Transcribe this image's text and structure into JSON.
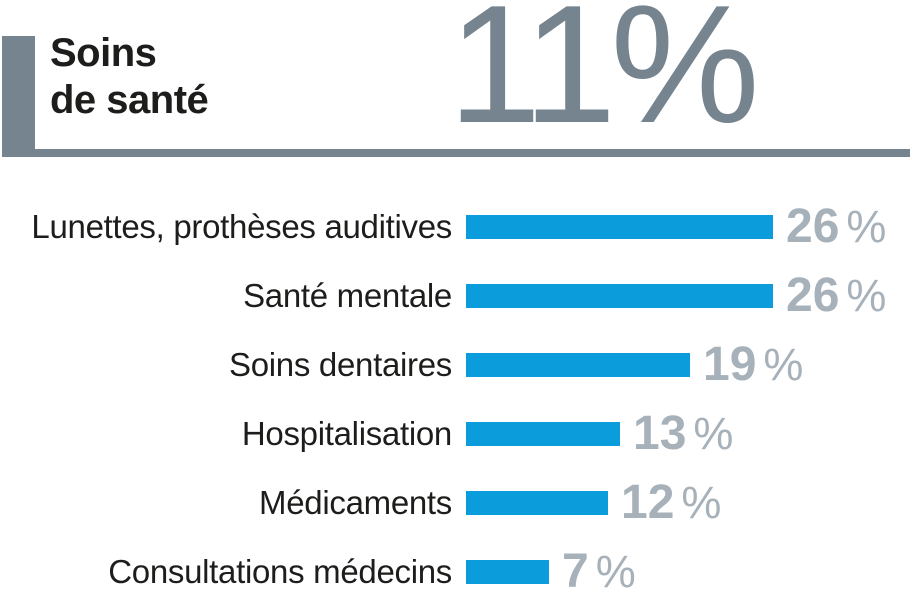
{
  "header": {
    "title_line1": "Soins",
    "title_line2": "de santé",
    "total_value": "11",
    "total_unit": "%"
  },
  "chart_data": {
    "type": "bar",
    "orientation": "horizontal",
    "title": "Soins de santé",
    "section_share_percent": 11,
    "categories": [
      "Lunettes, prothèses auditives",
      "Santé mentale",
      "Soins dentaires",
      "Hospitalisation",
      "Médicaments",
      "Consultations médecins"
    ],
    "values": [
      26,
      26,
      19,
      13,
      12,
      7
    ],
    "unit": "%",
    "xlim": [
      0,
      26
    ],
    "grid": false,
    "legend": null,
    "value_label_position": "right-of-bar"
  },
  "colors": {
    "bar_blue": "#0a9cdb",
    "value_gray": "#a7b1ba",
    "accent_slate": "#76848f",
    "text_dark": "#1d1d1b"
  }
}
